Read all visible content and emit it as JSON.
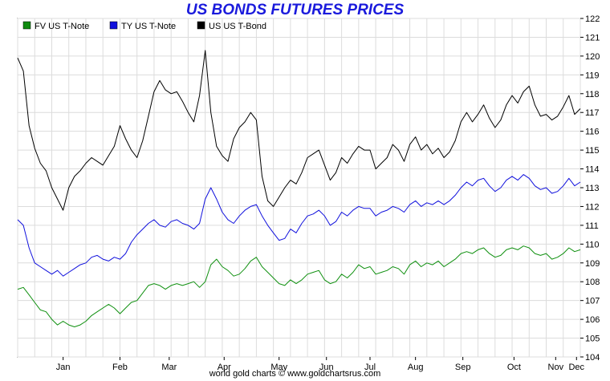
{
  "chart_data": {
    "type": "line",
    "title": "US BONDS FUTURES PRICES",
    "footer": "world gold charts © www.goldchartsrus.com",
    "xlabel": "",
    "ylabel": "",
    "ylim": [
      104,
      122
    ],
    "yticks": [
      104,
      105,
      106,
      107,
      108,
      109,
      110,
      111,
      112,
      113,
      114,
      115,
      116,
      117,
      118,
      119,
      120,
      121,
      122
    ],
    "x_range": [
      0,
      297
    ],
    "months": [
      {
        "label": "Jan",
        "x": 24
      },
      {
        "label": "Feb",
        "x": 54
      },
      {
        "label": "Mar",
        "x": 80
      },
      {
        "label": "Apr",
        "x": 109
      },
      {
        "label": "May",
        "x": 138
      },
      {
        "label": "Jun",
        "x": 163
      },
      {
        "label": "Jul",
        "x": 186
      },
      {
        "label": "Aug",
        "x": 210
      },
      {
        "label": "Sep",
        "x": 235
      },
      {
        "label": "Oct",
        "x": 262
      },
      {
        "label": "Nov",
        "x": 284
      },
      {
        "label": "Dec",
        "x": 295
      }
    ],
    "grid": true,
    "legend_position": "top-left",
    "colors": {
      "title": "#1a1adc",
      "grid": "#dcdcdc",
      "axis": "#000000"
    },
    "series": [
      {
        "name": "FV  US T-Note",
        "color": "#109010",
        "swatch": "#0f8a0f",
        "points": [
          [
            0,
            107.6
          ],
          [
            3,
            107.7
          ],
          [
            6,
            107.3
          ],
          [
            9,
            106.9
          ],
          [
            12,
            106.5
          ],
          [
            15,
            106.4
          ],
          [
            18,
            106.0
          ],
          [
            21,
            105.7
          ],
          [
            24,
            105.9
          ],
          [
            27,
            105.7
          ],
          [
            30,
            105.6
          ],
          [
            33,
            105.7
          ],
          [
            36,
            105.9
          ],
          [
            39,
            106.2
          ],
          [
            42,
            106.4
          ],
          [
            45,
            106.6
          ],
          [
            48,
            106.8
          ],
          [
            51,
            106.6
          ],
          [
            54,
            106.3
          ],
          [
            57,
            106.6
          ],
          [
            60,
            106.9
          ],
          [
            63,
            107.0
          ],
          [
            66,
            107.4
          ],
          [
            69,
            107.8
          ],
          [
            72,
            107.9
          ],
          [
            75,
            107.8
          ],
          [
            78,
            107.6
          ],
          [
            81,
            107.8
          ],
          [
            84,
            107.9
          ],
          [
            87,
            107.8
          ],
          [
            90,
            107.9
          ],
          [
            93,
            108.0
          ],
          [
            96,
            107.7
          ],
          [
            99,
            108.0
          ],
          [
            102,
            108.9
          ],
          [
            105,
            109.2
          ],
          [
            108,
            108.8
          ],
          [
            111,
            108.6
          ],
          [
            114,
            108.3
          ],
          [
            117,
            108.4
          ],
          [
            120,
            108.7
          ],
          [
            123,
            109.1
          ],
          [
            126,
            109.3
          ],
          [
            129,
            108.8
          ],
          [
            132,
            108.5
          ],
          [
            135,
            108.2
          ],
          [
            138,
            107.9
          ],
          [
            141,
            107.8
          ],
          [
            144,
            108.1
          ],
          [
            147,
            107.9
          ],
          [
            150,
            108.1
          ],
          [
            153,
            108.4
          ],
          [
            156,
            108.5
          ],
          [
            159,
            108.6
          ],
          [
            162,
            108.1
          ],
          [
            165,
            107.9
          ],
          [
            168,
            108.0
          ],
          [
            171,
            108.4
          ],
          [
            174,
            108.2
          ],
          [
            177,
            108.5
          ],
          [
            180,
            108.9
          ],
          [
            183,
            108.7
          ],
          [
            186,
            108.8
          ],
          [
            189,
            108.4
          ],
          [
            192,
            108.5
          ],
          [
            195,
            108.6
          ],
          [
            198,
            108.8
          ],
          [
            201,
            108.7
          ],
          [
            204,
            108.4
          ],
          [
            207,
            108.9
          ],
          [
            210,
            109.1
          ],
          [
            213,
            108.8
          ],
          [
            216,
            109.0
          ],
          [
            219,
            108.9
          ],
          [
            222,
            109.1
          ],
          [
            225,
            108.8
          ],
          [
            228,
            109.0
          ],
          [
            231,
            109.2
          ],
          [
            234,
            109.5
          ],
          [
            237,
            109.6
          ],
          [
            240,
            109.5
          ],
          [
            243,
            109.7
          ],
          [
            246,
            109.8
          ],
          [
            249,
            109.5
          ],
          [
            252,
            109.3
          ],
          [
            255,
            109.4
          ],
          [
            258,
            109.7
          ],
          [
            261,
            109.8
          ],
          [
            264,
            109.7
          ],
          [
            267,
            109.9
          ],
          [
            270,
            109.8
          ],
          [
            273,
            109.5
          ],
          [
            276,
            109.4
          ],
          [
            279,
            109.5
          ],
          [
            282,
            109.2
          ],
          [
            285,
            109.3
          ],
          [
            288,
            109.5
          ],
          [
            291,
            109.8
          ],
          [
            294,
            109.6
          ],
          [
            297,
            109.7
          ]
        ]
      },
      {
        "name": "TY  US T-Note",
        "color": "#1111dd",
        "swatch": "#1111dd",
        "points": [
          [
            0,
            111.3
          ],
          [
            3,
            111.0
          ],
          [
            6,
            109.8
          ],
          [
            9,
            109.0
          ],
          [
            12,
            108.8
          ],
          [
            15,
            108.6
          ],
          [
            18,
            108.4
          ],
          [
            21,
            108.6
          ],
          [
            24,
            108.3
          ],
          [
            27,
            108.5
          ],
          [
            30,
            108.7
          ],
          [
            33,
            108.9
          ],
          [
            36,
            109.0
          ],
          [
            39,
            109.3
          ],
          [
            42,
            109.4
          ],
          [
            45,
            109.2
          ],
          [
            48,
            109.1
          ],
          [
            51,
            109.3
          ],
          [
            54,
            109.2
          ],
          [
            57,
            109.5
          ],
          [
            60,
            110.1
          ],
          [
            63,
            110.5
          ],
          [
            66,
            110.8
          ],
          [
            69,
            111.1
          ],
          [
            72,
            111.3
          ],
          [
            75,
            111.0
          ],
          [
            78,
            110.9
          ],
          [
            81,
            111.2
          ],
          [
            84,
            111.3
          ],
          [
            87,
            111.1
          ],
          [
            90,
            111.0
          ],
          [
            93,
            110.8
          ],
          [
            96,
            111.1
          ],
          [
            99,
            112.4
          ],
          [
            102,
            113.0
          ],
          [
            105,
            112.4
          ],
          [
            108,
            111.7
          ],
          [
            111,
            111.3
          ],
          [
            114,
            111.1
          ],
          [
            117,
            111.5
          ],
          [
            120,
            111.8
          ],
          [
            123,
            112.0
          ],
          [
            126,
            112.1
          ],
          [
            129,
            111.5
          ],
          [
            132,
            111.0
          ],
          [
            135,
            110.6
          ],
          [
            138,
            110.2
          ],
          [
            141,
            110.3
          ],
          [
            144,
            110.8
          ],
          [
            147,
            110.6
          ],
          [
            150,
            111.1
          ],
          [
            153,
            111.5
          ],
          [
            156,
            111.6
          ],
          [
            159,
            111.8
          ],
          [
            162,
            111.5
          ],
          [
            165,
            111.0
          ],
          [
            168,
            111.2
          ],
          [
            171,
            111.7
          ],
          [
            174,
            111.5
          ],
          [
            177,
            111.8
          ],
          [
            180,
            112.0
          ],
          [
            183,
            111.9
          ],
          [
            186,
            111.9
          ],
          [
            189,
            111.5
          ],
          [
            192,
            111.7
          ],
          [
            195,
            111.8
          ],
          [
            198,
            112.0
          ],
          [
            201,
            111.9
          ],
          [
            204,
            111.7
          ],
          [
            207,
            112.1
          ],
          [
            210,
            112.3
          ],
          [
            213,
            112.0
          ],
          [
            216,
            112.2
          ],
          [
            219,
            112.1
          ],
          [
            222,
            112.3
          ],
          [
            225,
            112.1
          ],
          [
            228,
            112.3
          ],
          [
            231,
            112.6
          ],
          [
            234,
            113.0
          ],
          [
            237,
            113.3
          ],
          [
            240,
            113.1
          ],
          [
            243,
            113.4
          ],
          [
            246,
            113.5
          ],
          [
            249,
            113.1
          ],
          [
            252,
            112.8
          ],
          [
            255,
            113.0
          ],
          [
            258,
            113.4
          ],
          [
            261,
            113.6
          ],
          [
            264,
            113.4
          ],
          [
            267,
            113.7
          ],
          [
            270,
            113.5
          ],
          [
            273,
            113.1
          ],
          [
            276,
            112.9
          ],
          [
            279,
            113.0
          ],
          [
            282,
            112.7
          ],
          [
            285,
            112.8
          ],
          [
            288,
            113.1
          ],
          [
            291,
            113.5
          ],
          [
            294,
            113.1
          ],
          [
            297,
            113.3
          ]
        ]
      },
      {
        "name": "US  US T-Bond",
        "color": "#000000",
        "swatch": "#000000",
        "points": [
          [
            0,
            119.9
          ],
          [
            3,
            119.2
          ],
          [
            6,
            116.3
          ],
          [
            9,
            115.1
          ],
          [
            12,
            114.3
          ],
          [
            15,
            113.9
          ],
          [
            18,
            113.0
          ],
          [
            21,
            112.4
          ],
          [
            24,
            111.8
          ],
          [
            27,
            113.0
          ],
          [
            30,
            113.6
          ],
          [
            33,
            113.9
          ],
          [
            36,
            114.3
          ],
          [
            39,
            114.6
          ],
          [
            42,
            114.4
          ],
          [
            45,
            114.2
          ],
          [
            48,
            114.7
          ],
          [
            51,
            115.2
          ],
          [
            54,
            116.3
          ],
          [
            57,
            115.6
          ],
          [
            60,
            115.0
          ],
          [
            63,
            114.6
          ],
          [
            66,
            115.5
          ],
          [
            69,
            116.8
          ],
          [
            72,
            118.1
          ],
          [
            75,
            118.7
          ],
          [
            78,
            118.2
          ],
          [
            81,
            118.0
          ],
          [
            84,
            118.1
          ],
          [
            87,
            117.6
          ],
          [
            90,
            117.0
          ],
          [
            93,
            116.5
          ],
          [
            96,
            117.9
          ],
          [
            99,
            120.3
          ],
          [
            102,
            117.0
          ],
          [
            105,
            115.2
          ],
          [
            108,
            114.7
          ],
          [
            111,
            114.4
          ],
          [
            114,
            115.6
          ],
          [
            117,
            116.2
          ],
          [
            120,
            116.5
          ],
          [
            123,
            117.0
          ],
          [
            126,
            116.6
          ],
          [
            129,
            113.6
          ],
          [
            132,
            112.3
          ],
          [
            135,
            112.0
          ],
          [
            138,
            112.5
          ],
          [
            141,
            113.0
          ],
          [
            144,
            113.4
          ],
          [
            147,
            113.2
          ],
          [
            150,
            113.8
          ],
          [
            153,
            114.6
          ],
          [
            156,
            114.8
          ],
          [
            159,
            115.0
          ],
          [
            162,
            114.2
          ],
          [
            165,
            113.4
          ],
          [
            168,
            113.8
          ],
          [
            171,
            114.6
          ],
          [
            174,
            114.3
          ],
          [
            177,
            114.8
          ],
          [
            180,
            115.2
          ],
          [
            183,
            115.0
          ],
          [
            186,
            115.0
          ],
          [
            189,
            114.0
          ],
          [
            192,
            114.3
          ],
          [
            195,
            114.6
          ],
          [
            198,
            115.3
          ],
          [
            201,
            115.0
          ],
          [
            204,
            114.4
          ],
          [
            207,
            115.3
          ],
          [
            210,
            115.7
          ],
          [
            213,
            115.0
          ],
          [
            216,
            115.3
          ],
          [
            219,
            114.8
          ],
          [
            222,
            115.1
          ],
          [
            225,
            114.6
          ],
          [
            228,
            114.9
          ],
          [
            231,
            115.5
          ],
          [
            234,
            116.5
          ],
          [
            237,
            117.0
          ],
          [
            240,
            116.5
          ],
          [
            243,
            116.9
          ],
          [
            246,
            117.4
          ],
          [
            249,
            116.7
          ],
          [
            252,
            116.2
          ],
          [
            255,
            116.6
          ],
          [
            258,
            117.4
          ],
          [
            261,
            117.9
          ],
          [
            264,
            117.5
          ],
          [
            267,
            118.1
          ],
          [
            270,
            118.4
          ],
          [
            273,
            117.4
          ],
          [
            276,
            116.8
          ],
          [
            279,
            116.9
          ],
          [
            282,
            116.6
          ],
          [
            285,
            116.8
          ],
          [
            288,
            117.3
          ],
          [
            291,
            117.9
          ],
          [
            294,
            116.9
          ],
          [
            297,
            117.2
          ]
        ]
      }
    ]
  }
}
